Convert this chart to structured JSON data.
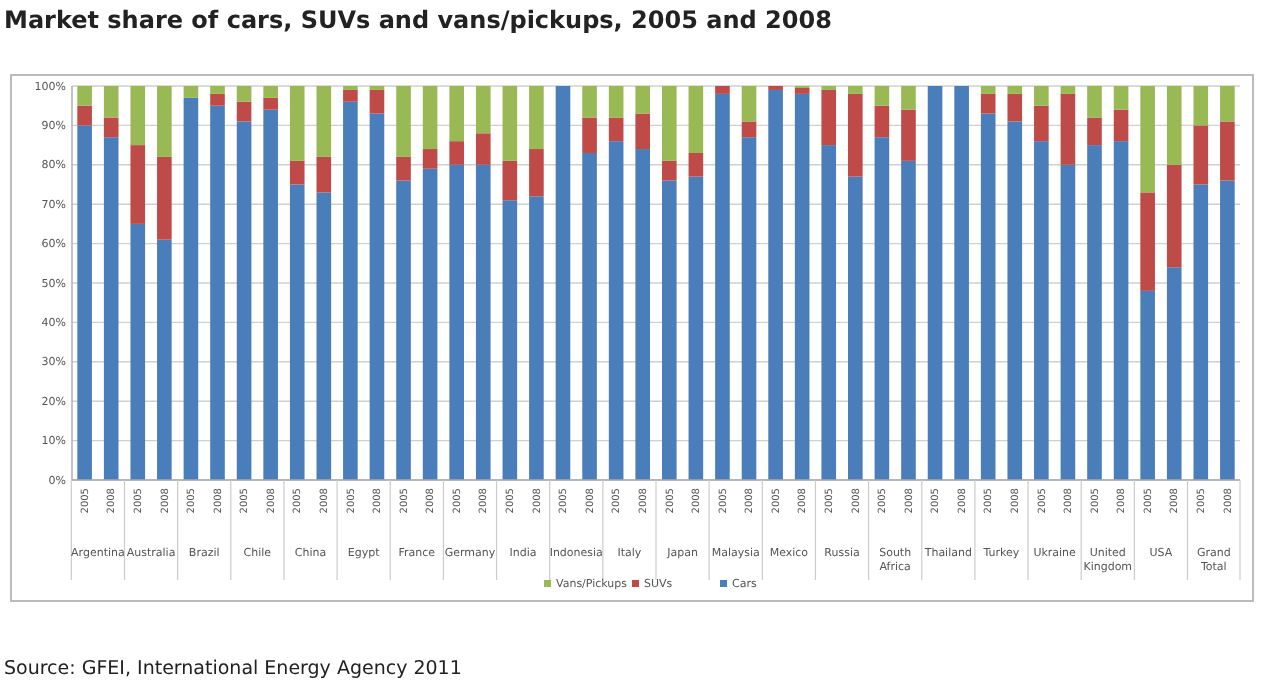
{
  "chart_data": {
    "type": "bar",
    "stacked": true,
    "title": "Market share of cars, SUVs and vans/pickups, 2005 and 2008",
    "categories": [
      "2005",
      "2008",
      "2005",
      "2008",
      "2005",
      "2008",
      "2005",
      "2008",
      "2005",
      "2008",
      "2005",
      "2008",
      "2005",
      "2008",
      "2005",
      "2008",
      "2005",
      "2008",
      "2005",
      "2008",
      "2005",
      "2008",
      "2005",
      "2008",
      "2005",
      "2008",
      "2005",
      "2008",
      "2005",
      "2008",
      "2005",
      "2008",
      "2005",
      "2008",
      "2005",
      "2008",
      "2005",
      "2008",
      "2005",
      "2008",
      "2005",
      "2008",
      "2005",
      "2008"
    ],
    "series": [
      {
        "name": "Cars",
        "color": "#4a7ebb",
        "values": [
          90,
          87,
          65,
          61,
          97,
          95,
          91,
          94,
          75,
          73,
          96,
          93,
          76,
          79,
          80,
          80,
          71,
          72,
          100,
          83,
          86,
          84,
          76,
          77,
          98,
          87,
          99,
          98,
          85,
          77,
          87,
          81,
          100,
          100,
          93,
          91,
          86,
          80,
          85,
          86,
          48,
          54,
          75,
          76
        ]
      },
      {
        "name": "SUVs",
        "color": "#be4b48",
        "values": [
          5,
          5,
          20,
          21,
          0,
          3,
          5,
          3,
          6,
          9,
          3,
          6,
          6,
          5,
          6,
          8,
          10,
          12,
          0,
          9,
          6,
          9,
          5,
          6,
          2,
          4,
          1,
          1.5,
          14,
          21,
          8,
          13,
          0,
          0,
          5,
          7,
          9,
          18,
          7,
          8,
          25,
          26,
          15,
          15
        ]
      },
      {
        "name": "Vans/Pickups",
        "color": "#98b954",
        "values": [
          5,
          8,
          15,
          18,
          3,
          2,
          4,
          3,
          19,
          18,
          1,
          1,
          18,
          16,
          14,
          12,
          19,
          16,
          0,
          8,
          8,
          7,
          19,
          17,
          0,
          9,
          0,
          0.5,
          1,
          2,
          5,
          6,
          0,
          0,
          2,
          2,
          5,
          2,
          8,
          6,
          27,
          20,
          10,
          9
        ]
      }
    ],
    "ylim": [
      0,
      100
    ],
    "yticks": [
      {
        "value": 0,
        "label": "0%"
      },
      {
        "value": 10,
        "label": "10%"
      },
      {
        "value": 20,
        "label": "20%"
      },
      {
        "value": 30,
        "label": "30%"
      },
      {
        "value": 40,
        "label": "40%"
      },
      {
        "value": 50,
        "label": "50%"
      },
      {
        "value": 60,
        "label": "60%"
      },
      {
        "value": 70,
        "label": "70%"
      },
      {
        "value": 80,
        "label": "80%"
      },
      {
        "value": 90,
        "label": "90%"
      },
      {
        "value": 100,
        "label": "100%"
      }
    ],
    "grid": "y",
    "legend": "bottom",
    "annotations": [
      "Argentina",
      "Australia",
      "Brazil",
      "Chile",
      "China",
      "Egypt",
      "France",
      "Germany",
      "India",
      "Indonesia",
      "Italy",
      "Japan",
      "Malaysia",
      "Mexico",
      "Russia",
      "South Africa",
      "Thailand",
      "Turkey",
      "Ukraine",
      "United Kingdom",
      "USA",
      "Grand Total",
      "Source: GFEI, International Energy Agency 2011"
    ]
  }
}
